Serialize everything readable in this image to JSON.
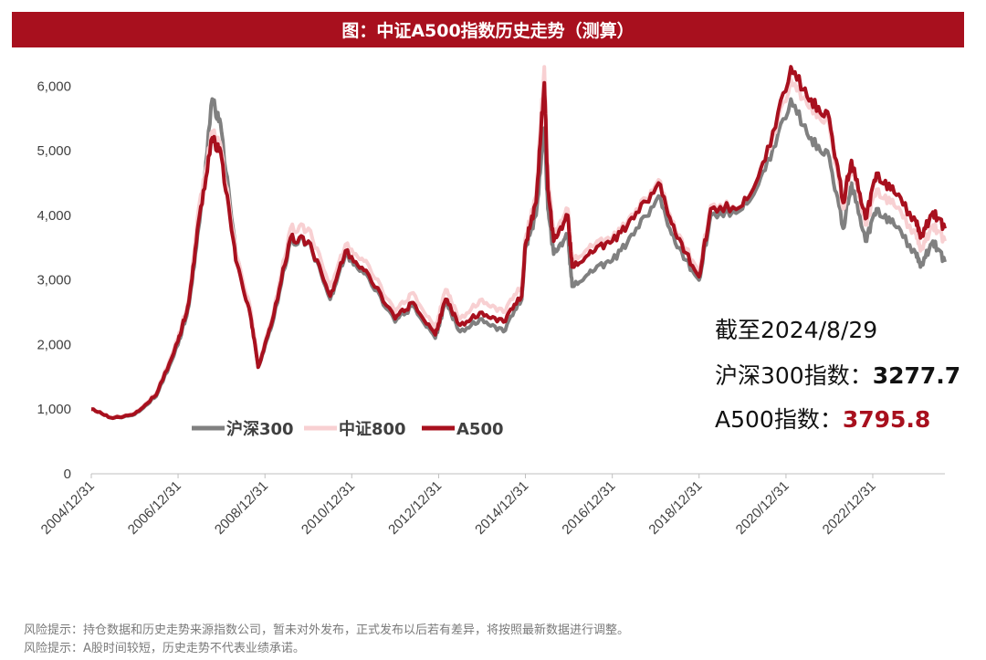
{
  "title": "图：中证A500指数历史走势（测算）",
  "annotation": {
    "date_line": "截至2024/8/29",
    "hs300_label": "沪深300指数：",
    "hs300_value": "3277.7",
    "a500_label": "A500指数：",
    "a500_value": "3795.8"
  },
  "notes": [
    "风险提示：持仓数据和历史走势来源指数公司，暂未对外发布，正式发布以后若有差异，将按照最新数据进行调整。",
    "风险提示：A股时间较短，历史走势不代表业绩承诺。"
  ],
  "chart_data": {
    "type": "line",
    "ylim": [
      0,
      6500
    ],
    "y_ticks": [
      0,
      1000,
      2000,
      3000,
      4000,
      5000,
      6000
    ],
    "y_tick_labels": [
      "0",
      "1,000",
      "2,000",
      "3,000",
      "4,000",
      "5,000",
      "6,000"
    ],
    "x_range": [
      "2004-12-31",
      "2024-08-29"
    ],
    "x_tick_labels": [
      "2004/12/31",
      "2006/12/31",
      "2008/12/31",
      "2010/12/31",
      "2012/12/31",
      "2014/12/31",
      "2016/12/31",
      "2018/12/31",
      "2020/12/31",
      "2022/12/31"
    ],
    "legend_position": "lower-left",
    "x": [
      "2004-12-31",
      "2005-06-30",
      "2005-12-31",
      "2006-06-30",
      "2006-12-31",
      "2007-03-31",
      "2007-06-30",
      "2007-10-15",
      "2007-12-31",
      "2008-04-30",
      "2008-08-31",
      "2008-11-04",
      "2009-02-28",
      "2009-08-03",
      "2009-12-31",
      "2010-07-02",
      "2010-11-08",
      "2011-04-30",
      "2011-12-31",
      "2012-05-31",
      "2012-12-03",
      "2013-02-28",
      "2013-06-30",
      "2013-12-31",
      "2014-06-30",
      "2014-11-30",
      "2014-12-31",
      "2015-03-31",
      "2015-06-08",
      "2015-07-08",
      "2015-08-26",
      "2015-12-22",
      "2016-01-28",
      "2016-06-30",
      "2016-12-31",
      "2017-06-30",
      "2018-01-24",
      "2018-06-30",
      "2018-12-31",
      "2019-04-08",
      "2019-12-31",
      "2020-07-09",
      "2021-02-10",
      "2021-07-31",
      "2021-12-31",
      "2022-04-26",
      "2022-07-05",
      "2022-10-31",
      "2023-01-31",
      "2023-06-30",
      "2023-12-31",
      "2024-02-05",
      "2024-05-20",
      "2024-08-29"
    ],
    "series": [
      {
        "name": "沪深300",
        "color": "#808080",
        "values": [
          1000,
          860,
          920,
          1200,
          2000,
          2600,
          3900,
          5800,
          5300,
          3400,
          2500,
          1650,
          2300,
          3600,
          3600,
          2700,
          3400,
          3100,
          2350,
          2600,
          2100,
          2650,
          2200,
          2400,
          2200,
          2700,
          3500,
          4000,
          5350,
          4100,
          3400,
          3700,
          2900,
          3150,
          3300,
          3700,
          4300,
          3500,
          3000,
          4000,
          4100,
          4700,
          5800,
          5200,
          4900,
          3800,
          4500,
          3600,
          4100,
          3850,
          3400,
          3200,
          3600,
          3277.7
        ]
      },
      {
        "name": "中证800",
        "color": "#f8d0d2",
        "values": [
          1000,
          870,
          940,
          1240,
          2100,
          2700,
          4200,
          5300,
          5000,
          3400,
          2550,
          1680,
          2400,
          3800,
          3800,
          2900,
          3550,
          3300,
          2500,
          2800,
          2250,
          2850,
          2400,
          2700,
          2500,
          2900,
          3650,
          4300,
          6300,
          4600,
          3700,
          4100,
          3300,
          3550,
          3650,
          4000,
          4550,
          3700,
          3150,
          4150,
          4150,
          4850,
          6100,
          5700,
          5400,
          4100,
          4800,
          3850,
          4400,
          4150,
          3700,
          3450,
          3850,
          3600
        ]
      },
      {
        "name": "A500",
        "color": "#a8101e",
        "values": [
          1000,
          860,
          930,
          1220,
          2050,
          2650,
          4000,
          5200,
          4900,
          3300,
          2450,
          1650,
          2350,
          3650,
          3600,
          2750,
          3450,
          3150,
          2400,
          2650,
          2150,
          2700,
          2300,
          2500,
          2350,
          2750,
          3550,
          4200,
          6050,
          4400,
          3600,
          4000,
          3200,
          3450,
          3600,
          3950,
          4500,
          3650,
          3050,
          4100,
          4150,
          4850,
          6300,
          5800,
          5500,
          4200,
          4850,
          3950,
          4650,
          4350,
          3900,
          3650,
          4050,
          3795.8
        ]
      }
    ]
  }
}
